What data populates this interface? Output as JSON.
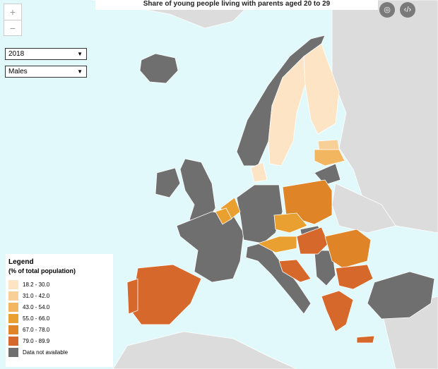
{
  "header": {
    "title": "Share of young people living with parents aged 20 to 29"
  },
  "controls": {
    "year": "2018",
    "sex": "Males"
  },
  "legend": {
    "title": "Legend",
    "subtitle": "(% of total population)",
    "items": [
      {
        "label": "18.2 - 30.0",
        "color": "#fde4c4"
      },
      {
        "label": "31.0 - 42.0",
        "color": "#f8cf96"
      },
      {
        "label": "43.0 - 54.0",
        "color": "#f2b660"
      },
      {
        "label": "55.0 - 66.0",
        "color": "#e9a030"
      },
      {
        "label": "67.0 - 78.0",
        "color": "#df8528"
      },
      {
        "label": "79.0 - 89.9",
        "color": "#d7682b"
      },
      {
        "label": "Data not available",
        "color": "#6f6f6f"
      }
    ]
  }
}
